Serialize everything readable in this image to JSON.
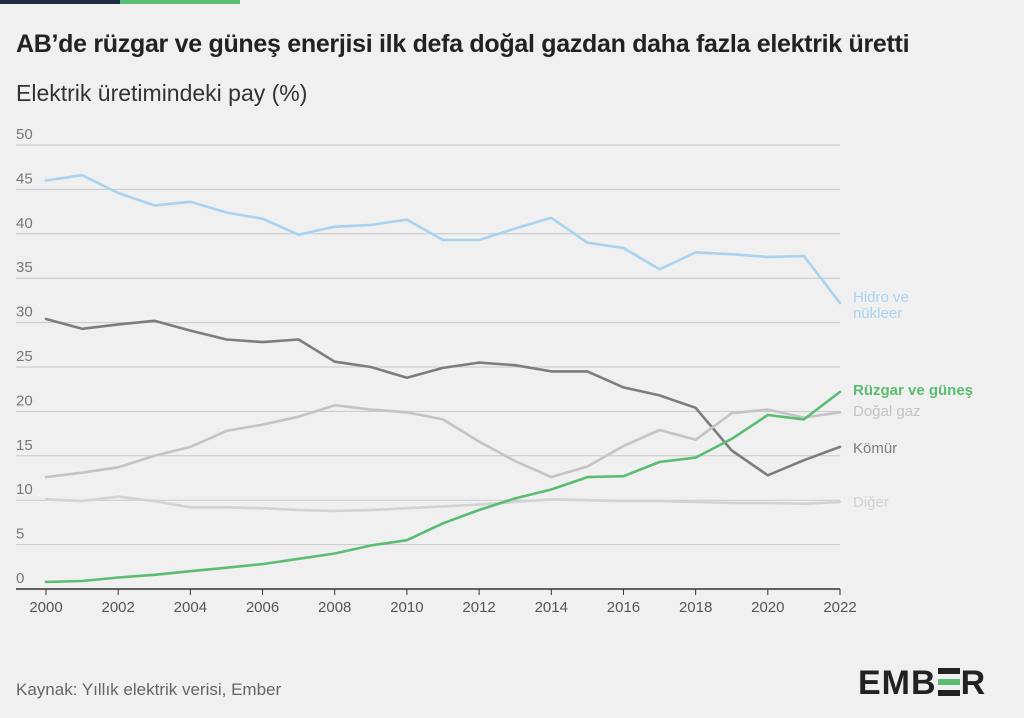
{
  "header": {
    "title": "AB’de rüzgar ve güneş enerjisi ilk defa doğal gazdan daha fazla elektrik üretti",
    "subtitle": "Elektrik üretimindeki pay (%)"
  },
  "footer": {
    "source": "Kaynak: Yıllık elektrik verisi, Ember",
    "logo_text": "EMBER"
  },
  "chart_data": {
    "type": "line",
    "x": [
      2000,
      2001,
      2002,
      2003,
      2004,
      2005,
      2006,
      2007,
      2008,
      2009,
      2010,
      2011,
      2012,
      2013,
      2014,
      2015,
      2016,
      2017,
      2018,
      2019,
      2020,
      2021,
      2022
    ],
    "xlim": [
      2000,
      2022
    ],
    "ylim": [
      0,
      50
    ],
    "xticks": [
      "2000",
      "2002",
      "2004",
      "2006",
      "2008",
      "2010",
      "2012",
      "2014",
      "2016",
      "2018",
      "2020",
      "2022"
    ],
    "yticks": [
      "0",
      "5",
      "10",
      "15",
      "20",
      "25",
      "30",
      "35",
      "40",
      "45",
      "50"
    ],
    "grid": "horizontal",
    "legend": "direct labels at right end of lines",
    "series": [
      {
        "name": "Hidro ve nükleer",
        "label_lines": [
          "Hidro ve",
          "nükleer"
        ],
        "color": "#a9d3ef",
        "values": [
          46.0,
          46.6,
          44.6,
          43.2,
          43.6,
          42.4,
          41.7,
          39.9,
          40.8,
          41.0,
          41.6,
          39.3,
          39.3,
          40.6,
          41.8,
          39.0,
          38.4,
          36.0,
          37.9,
          37.7,
          37.4,
          37.5,
          32.2
        ]
      },
      {
        "name": "Kömür",
        "label_lines": [
          "Kömür"
        ],
        "color": "#7d7d7d",
        "values": [
          30.4,
          29.3,
          29.8,
          30.2,
          29.1,
          28.1,
          27.8,
          28.1,
          25.6,
          25.0,
          23.8,
          24.9,
          25.5,
          25.2,
          24.5,
          24.5,
          22.7,
          21.8,
          20.4,
          15.6,
          12.8,
          14.5,
          16.0
        ]
      },
      {
        "name": "Doğal gaz",
        "label_lines": [
          "Doğal gaz"
        ],
        "color": "#c4c4c4",
        "values": [
          12.6,
          13.1,
          13.7,
          15.0,
          16.0,
          17.8,
          18.5,
          19.4,
          20.7,
          20.2,
          19.9,
          19.1,
          16.6,
          14.4,
          12.6,
          13.8,
          16.1,
          17.9,
          16.8,
          19.8,
          20.2,
          19.3,
          19.9
        ]
      },
      {
        "name": "Diğer",
        "label_lines": [
          "Diğer"
        ],
        "color": "#d3d3d3",
        "values": [
          10.1,
          9.9,
          10.4,
          9.9,
          9.2,
          9.2,
          9.1,
          8.9,
          8.8,
          8.9,
          9.1,
          9.3,
          9.5,
          9.8,
          10.1,
          10.0,
          9.9,
          9.9,
          9.8,
          9.7,
          9.7,
          9.6,
          9.8
        ]
      },
      {
        "name": "Rüzgar ve güneş",
        "label_lines": [
          "Rüzgar ve güneş"
        ],
        "color": "#5bbd72",
        "values": [
          0.8,
          0.9,
          1.3,
          1.6,
          2.0,
          2.4,
          2.8,
          3.4,
          4.0,
          4.9,
          5.5,
          7.4,
          8.9,
          10.2,
          11.2,
          12.6,
          12.7,
          14.3,
          14.8,
          16.9,
          19.6,
          19.1,
          22.2
        ]
      }
    ]
  }
}
